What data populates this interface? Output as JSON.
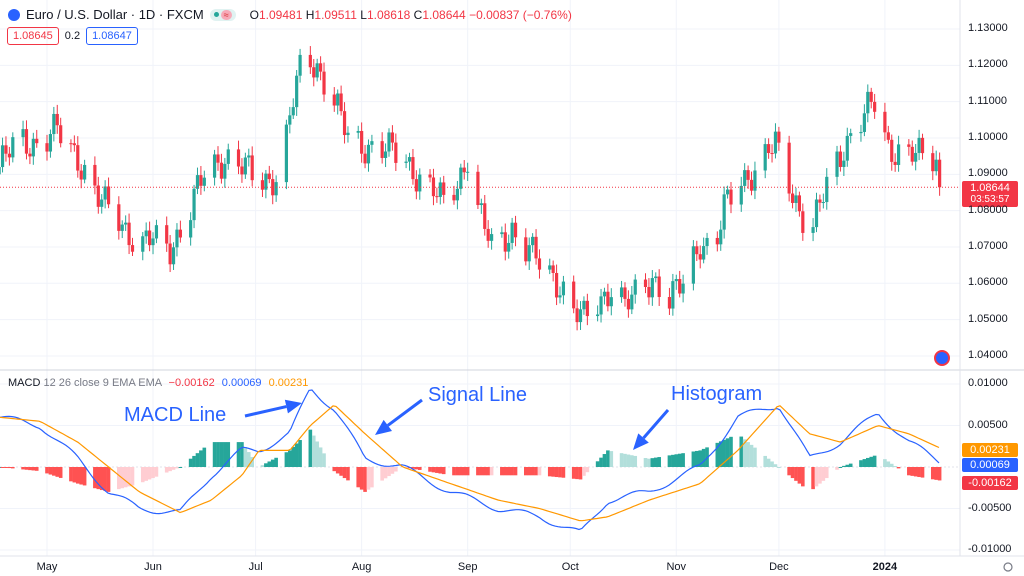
{
  "header": {
    "symbol": "Euro / U.S. Dollar · 1D · FXCM",
    "open_label": "O",
    "open": "1.09481",
    "high_label": "H",
    "high": "1.09511",
    "low_label": "L",
    "low": "1.08618",
    "close_label": "C",
    "close": "1.08644",
    "change": "−0.00837 (−0.76%)",
    "bid": "1.08645",
    "spread": "0.2",
    "ask": "1.08647"
  },
  "macd_header": {
    "title": "MACD",
    "params": "12 26 close 9 EMA EMA",
    "hist": "−0.00162",
    "macd": "0.00069",
    "signal": "0.00231"
  },
  "annotations": {
    "macd_line": "MACD Line",
    "signal_line": "Signal Line",
    "histogram": "Histogram"
  },
  "price_badge": {
    "price": "1.08644",
    "countdown": "03:53:57"
  },
  "macd_badges": {
    "signal": "0.00231",
    "macd": "0.00069",
    "hist": "-0.00162"
  },
  "colors": {
    "up": "#26a69a",
    "down": "#f23645",
    "macd": "#2962ff",
    "signal": "#ff9800",
    "hist_up_strong": "#26a69a",
    "hist_up_weak": "#b2dfdb",
    "hist_down_strong": "#ff5252",
    "hist_down_weak": "#ffcdd2"
  },
  "chart_data": [
    {
      "type": "candlestick",
      "symbol": "EURUSD",
      "ylim": [
        1.04,
        1.13
      ],
      "y_ticks": [
        "1.13000",
        "1.12000",
        "1.11000",
        "1.10000",
        "1.09000",
        "1.08000",
        "1.07000",
        "1.06000",
        "1.05000",
        "1.04000"
      ],
      "x_ticks": [
        "May",
        "Jun",
        "Jul",
        "Aug",
        "Sep",
        "Oct",
        "Nov",
        "Dec",
        "2024"
      ],
      "close_path": [
        [
          "2023-04-17",
          1.092
        ],
        [
          "2023-04-23",
          1.1
        ],
        [
          "2023-04-29",
          1.098
        ],
        [
          "2023-05-04",
          1.102
        ],
        [
          "2023-05-10",
          1.095
        ],
        [
          "2023-05-16",
          1.083
        ],
        [
          "2023-05-22",
          1.078
        ],
        [
          "2023-05-28",
          1.07
        ],
        [
          "2023-06-01",
          1.072
        ],
        [
          "2023-06-06",
          1.07
        ],
        [
          "2023-06-11",
          1.078
        ],
        [
          "2023-06-16",
          1.09
        ],
        [
          "2023-06-22",
          1.095
        ],
        [
          "2023-06-27",
          1.092
        ],
        [
          "2023-07-02",
          1.088
        ],
        [
          "2023-07-08",
          1.09
        ],
        [
          "2023-07-12",
          1.11
        ],
        [
          "2023-07-15",
          1.123
        ],
        [
          "2023-07-19",
          1.12
        ],
        [
          "2023-07-24",
          1.11
        ],
        [
          "2023-07-28",
          1.1
        ],
        [
          "2023-08-02",
          1.098
        ],
        [
          "2023-08-07",
          1.097
        ],
        [
          "2023-08-13",
          1.095
        ],
        [
          "2023-08-19",
          1.088
        ],
        [
          "2023-08-25",
          1.082
        ],
        [
          "2023-08-29",
          1.088
        ],
        [
          "2023-09-01",
          1.095
        ],
        [
          "2023-09-04",
          1.08
        ],
        [
          "2023-09-08",
          1.07
        ],
        [
          "2023-09-14",
          1.075
        ],
        [
          "2023-09-17",
          1.07
        ],
        [
          "2023-09-23",
          1.065
        ],
        [
          "2023-09-28",
          1.06
        ],
        [
          "2023-10-02",
          1.052
        ],
        [
          "2023-10-05",
          1.05
        ],
        [
          "2023-10-09",
          1.055
        ],
        [
          "2023-10-14",
          1.06
        ],
        [
          "2023-10-17",
          1.053
        ],
        [
          "2023-10-21",
          1.058
        ],
        [
          "2023-10-25",
          1.062
        ],
        [
          "2023-10-30",
          1.055
        ],
        [
          "2023-11-03",
          1.06
        ],
        [
          "2023-11-08",
          1.072
        ],
        [
          "2023-11-12",
          1.068
        ],
        [
          "2023-11-15",
          1.08
        ],
        [
          "2023-11-19",
          1.088
        ],
        [
          "2023-11-25",
          1.092
        ],
        [
          "2023-11-30",
          1.098
        ],
        [
          "2023-12-04",
          1.088
        ],
        [
          "2023-12-08",
          1.078
        ],
        [
          "2023-12-11",
          1.075
        ],
        [
          "2023-12-16",
          1.09
        ],
        [
          "2023-12-20",
          1.098
        ],
        [
          "2023-12-24",
          1.103
        ],
        [
          "2023-12-29",
          1.11
        ],
        [
          "2024-01-02",
          1.098
        ],
        [
          "2024-01-07",
          1.095
        ],
        [
          "2024-01-11",
          1.095
        ],
        [
          "2024-01-16",
          1.095
        ],
        [
          "2024-01-17",
          1.08644
        ]
      ],
      "last_price": 1.08644
    },
    {
      "type": "line+bar",
      "name": "MACD 12 26 close 9",
      "ylim": [
        -0.0115,
        0.011
      ],
      "y_ticks": [
        "0.01000",
        "0.00500",
        "-0.00500",
        "-0.01000"
      ],
      "series": [
        {
          "name": "MACD",
          "points": [
            [
              "2023-04-17",
              0.006
            ],
            [
              "2023-04-29",
              0.005
            ],
            [
              "2023-05-10",
              0.001
            ],
            [
              "2023-05-19",
              -0.003
            ],
            [
              "2023-05-28",
              -0.005
            ],
            [
              "2023-06-09",
              -0.0055
            ],
            [
              "2023-06-18",
              -0.001
            ],
            [
              "2023-06-27",
              0.002
            ],
            [
              "2023-07-02",
              0.002
            ],
            [
              "2023-07-11",
              0.004
            ],
            [
              "2023-07-17",
              0.0095
            ],
            [
              "2023-07-24",
              0.007
            ],
            [
              "2023-08-02",
              0.001
            ],
            [
              "2023-08-13",
              0.0
            ],
            [
              "2023-08-27",
              -0.003
            ],
            [
              "2023-09-10",
              -0.005
            ],
            [
              "2023-09-22",
              -0.006
            ],
            [
              "2023-10-04",
              -0.008
            ],
            [
              "2023-10-12",
              -0.004
            ],
            [
              "2023-10-24",
              -0.003
            ],
            [
              "2023-11-08",
              0.0
            ],
            [
              "2023-11-19",
              0.006
            ],
            [
              "2023-12-01",
              0.0075
            ],
            [
              "2023-12-10",
              0.001
            ],
            [
              "2023-12-19",
              0.003
            ],
            [
              "2023-12-30",
              0.0065
            ],
            [
              "2024-01-08",
              0.003
            ],
            [
              "2024-01-17",
              0.00069
            ]
          ]
        },
        {
          "name": "Signal",
          "points": [
            [
              "2023-04-17",
              0.006
            ],
            [
              "2023-04-29",
              0.0055
            ],
            [
              "2023-05-10",
              0.003
            ],
            [
              "2023-05-19",
              0.0
            ],
            [
              "2023-05-28",
              -0.003
            ],
            [
              "2023-06-09",
              -0.0055
            ],
            [
              "2023-06-18",
              -0.004
            ],
            [
              "2023-06-27",
              -0.001
            ],
            [
              "2023-07-02",
              0.002
            ],
            [
              "2023-07-11",
              0.002
            ],
            [
              "2023-07-17",
              0.005
            ],
            [
              "2023-07-24",
              0.0075
            ],
            [
              "2023-08-02",
              0.004
            ],
            [
              "2023-08-13",
              0.0
            ],
            [
              "2023-08-27",
              -0.002
            ],
            [
              "2023-09-10",
              -0.004
            ],
            [
              "2023-09-22",
              -0.005
            ],
            [
              "2023-10-04",
              -0.0065
            ],
            [
              "2023-10-12",
              -0.006
            ],
            [
              "2023-10-24",
              -0.004
            ],
            [
              "2023-11-08",
              -0.002
            ],
            [
              "2023-11-19",
              0.002
            ],
            [
              "2023-12-01",
              0.0075
            ],
            [
              "2023-12-10",
              0.004
            ],
            [
              "2023-12-19",
              0.003
            ],
            [
              "2023-12-30",
              0.005
            ],
            [
              "2024-01-08",
              0.004
            ],
            [
              "2024-01-17",
              0.00231
            ]
          ]
        }
      ],
      "histogram": "MACD - Signal"
    }
  ]
}
